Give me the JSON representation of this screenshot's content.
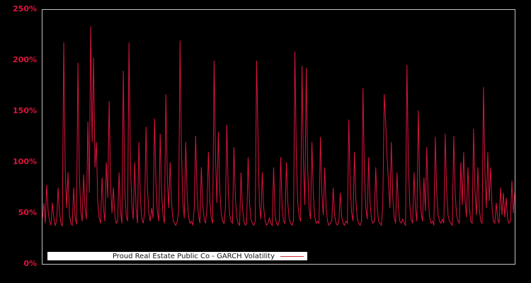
{
  "chart_data": {
    "type": "line",
    "title": "",
    "xlabel": "",
    "ylabel": "",
    "ylim": [
      0,
      250
    ],
    "yticks": [
      0,
      50,
      100,
      150,
      200,
      250
    ],
    "ytick_labels": [
      "0%",
      "50%",
      "100%",
      "150%",
      "200%",
      "250%"
    ],
    "xtick_labels": [],
    "grid": false,
    "legend_position": "bottom-left-inside",
    "legend_label": "Proud Real Estate Public Co - GARCH Volatility",
    "colors": {
      "background": "#000000",
      "line": "#dc143c",
      "tick_labels": "#dc143c",
      "plot_border": "#c3c3c3",
      "legend_background": "#ffffff",
      "legend_text": "#111111"
    },
    "series": [
      {
        "name": "Proud Real Estate Public Co - GARCH Volatility",
        "color": "#dc143c",
        "unit": "%",
        "values": [
          45,
          60,
          40,
          78,
          52,
          42,
          38,
          60,
          45,
          38,
          42,
          75,
          50,
          40,
          37,
          218,
          95,
          55,
          90,
          48,
          40,
          38,
          75,
          46,
          39,
          198,
          88,
          52,
          42,
          88,
          55,
          44,
          140,
          70,
          234,
          120,
          203,
          95,
          120,
          60,
          45,
          40,
          85,
          55,
          42,
          100,
          65,
          160,
          80,
          50,
          75,
          48,
          40,
          42,
          90,
          52,
          40,
          190,
          75,
          48,
          42,
          218,
          100,
          58,
          44,
          100,
          55,
          40,
          120,
          65,
          45,
          40,
          50,
          135,
          75,
          50,
          42,
          55,
          45,
          143,
          80,
          52,
          42,
          128,
          70,
          48,
          40,
          167,
          85,
          55,
          100,
          60,
          44,
          40,
          38,
          42,
          52,
          220,
          110,
          60,
          45,
          120,
          68,
          46,
          40,
          42,
          38,
          55,
          126,
          70,
          48,
          40,
          95,
          58,
          44,
          40,
          55,
          110,
          62,
          45,
          40,
          200,
          105,
          60,
          130,
          75,
          50,
          42,
          40,
          55,
          137,
          72,
          48,
          42,
          40,
          115,
          65,
          46,
          40,
          38,
          90,
          55,
          42,
          38,
          40,
          105,
          60,
          44,
          40,
          38,
          42,
          200,
          122,
          58,
          44,
          90,
          55,
          42,
          38,
          40,
          45,
          40,
          38,
          95,
          48,
          40,
          38,
          42,
          105,
          55,
          42,
          40,
          100,
          60,
          44,
          40,
          38,
          42,
          209,
          105,
          60,
          46,
          42,
          195,
          100,
          58,
          193,
          95,
          55,
          44,
          120,
          68,
          46,
          40,
          42,
          40,
          125,
          70,
          48,
          95,
          55,
          42,
          38,
          40,
          42,
          75,
          48,
          40,
          38,
          42,
          70,
          46,
          40,
          38,
          42,
          40,
          142,
          78,
          50,
          42,
          110,
          62,
          44,
          40,
          38,
          42,
          173,
          90,
          55,
          44,
          105,
          60,
          44,
          40,
          42,
          95,
          56,
          42,
          40,
          38,
          60,
          167,
          140,
          105,
          80,
          55,
          120,
          66,
          46,
          40,
          90,
          55,
          42,
          40,
          44,
          40,
          38,
          196,
          100,
          58,
          44,
          40,
          90,
          54,
          42,
          151,
          80,
          50,
          42,
          85,
          52,
          115,
          64,
          46,
          40,
          42,
          38,
          125,
          70,
          48,
          42,
          40,
          44,
          40,
          128,
          72,
          48,
          42,
          40,
          38,
          126,
          70,
          48,
          42,
          40,
          100,
          58,
          110,
          62,
          46,
          95,
          56,
          42,
          40,
          133,
          72,
          48,
          95,
          55,
          42,
          40,
          174,
          90,
          55,
          110,
          62,
          95,
          56,
          42,
          40,
          60,
          44,
          40,
          75,
          48,
          70,
          46,
          65,
          44,
          40,
          42,
          82,
          50,
          70
        ]
      }
    ]
  }
}
